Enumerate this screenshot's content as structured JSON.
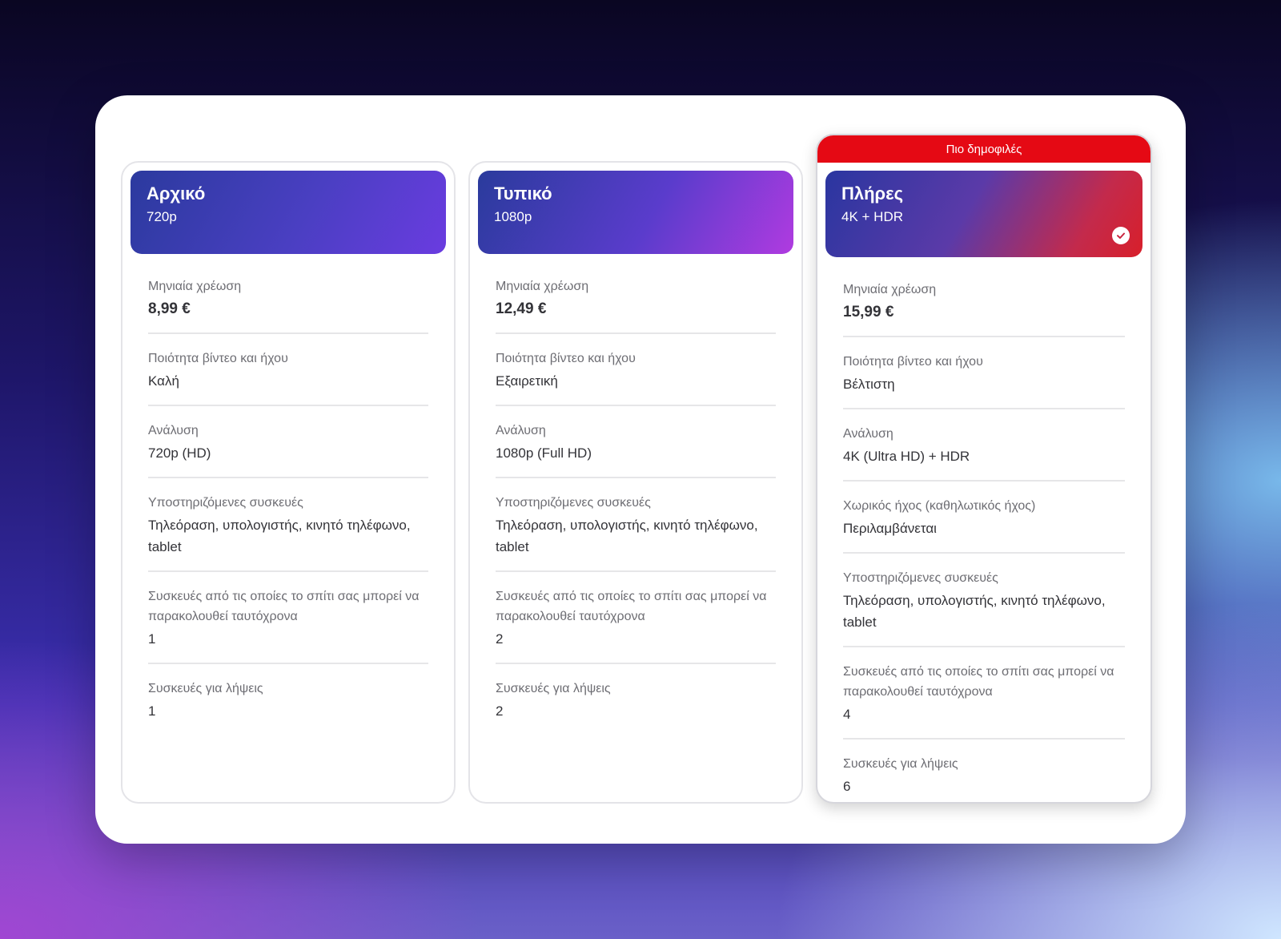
{
  "badge": "Πιο δημοφιλές",
  "plans": [
    {
      "name": "Αρχικό",
      "resolution_short": "720p",
      "rows": [
        {
          "label": "Μηνιαία χρέωση",
          "value": "8,99 €"
        },
        {
          "label": "Ποιότητα βίντεο και ήχου",
          "value": "Καλή"
        },
        {
          "label": "Ανάλυση",
          "value": "720p (HD)"
        },
        {
          "label": "Υποστηριζόμενες συσκευές",
          "value": "Τηλεόραση, υπολογιστής, κινητό τηλέφωνο, tablet"
        },
        {
          "label": "Συσκευές από τις οποίες το σπίτι σας μπορεί να παρακολουθεί ταυτόχρονα",
          "value": "1"
        },
        {
          "label": "Συσκευές για λήψεις",
          "value": "1"
        }
      ]
    },
    {
      "name": "Τυπικό",
      "resolution_short": "1080p",
      "rows": [
        {
          "label": "Μηνιαία χρέωση",
          "value": "12,49 €"
        },
        {
          "label": "Ποιότητα βίντεο και ήχου",
          "value": "Εξαιρετική"
        },
        {
          "label": "Ανάλυση",
          "value": "1080p (Full HD)"
        },
        {
          "label": "Υποστηριζόμενες συσκευές",
          "value": "Τηλεόραση, υπολογιστής, κινητό τηλέφωνο, tablet"
        },
        {
          "label": "Συσκευές από τις οποίες το σπίτι σας μπορεί να παρακολουθεί ταυτόχρονα",
          "value": "2"
        },
        {
          "label": "Συσκευές για λήψεις",
          "value": "2"
        }
      ]
    },
    {
      "name": "Πλήρες",
      "resolution_short": "4K + HDR",
      "selected": true,
      "rows": [
        {
          "label": "Μηνιαία χρέωση",
          "value": "15,99 €"
        },
        {
          "label": "Ποιότητα βίντεο και ήχου",
          "value": "Βέλτιστη"
        },
        {
          "label": "Ανάλυση",
          "value": "4K (Ultra HD) + HDR"
        },
        {
          "label": "Χωρικός ήχος (καθηλωτικός ήχος)",
          "value": "Περιλαμβάνεται"
        },
        {
          "label": "Υποστηριζόμενες συσκευές",
          "value": "Τηλεόραση, υπολογιστής, κινητό τηλέφωνο, tablet"
        },
        {
          "label": "Συσκευές από τις οποίες το σπίτι σας μπορεί να παρακολουθεί ταυτόχρονα",
          "value": "4"
        },
        {
          "label": "Συσκευές για λήψεις",
          "value": "6"
        }
      ]
    }
  ],
  "icons": {
    "selected_check": "check-circle-icon"
  },
  "colors": {
    "badge": "#e50914",
    "text": "#333338",
    "label": "#6d6d73"
  }
}
